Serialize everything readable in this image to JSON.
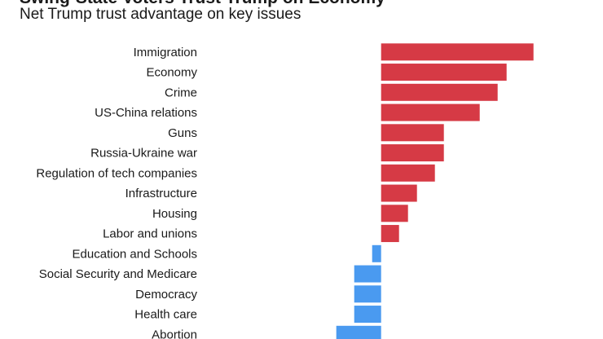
{
  "chart_data": {
    "type": "bar",
    "orientation": "horizontal",
    "title": "Swing-State Voters Trust Trump on Economy",
    "subtitle": "Net Trump trust advantage on key issues",
    "categories": [
      "Immigration",
      "Economy",
      "Crime",
      "US-China relations",
      "Guns",
      "Russia-Ukraine war",
      "Regulation of tech companies",
      "Infrastructure",
      "Housing",
      "Labor and unions",
      "Education and Schools",
      "Social Security and Medicare",
      "Democracy",
      "Health care",
      "Abortion"
    ],
    "values": [
      17,
      14,
      13,
      11,
      7,
      7,
      6,
      4,
      3,
      2,
      -1,
      -3,
      -3,
      -3,
      -5
    ],
    "xlim": [
      -20,
      18
    ],
    "grid": false,
    "colors": {
      "positive": "#d63a45",
      "negative": "#4a9af0"
    }
  }
}
